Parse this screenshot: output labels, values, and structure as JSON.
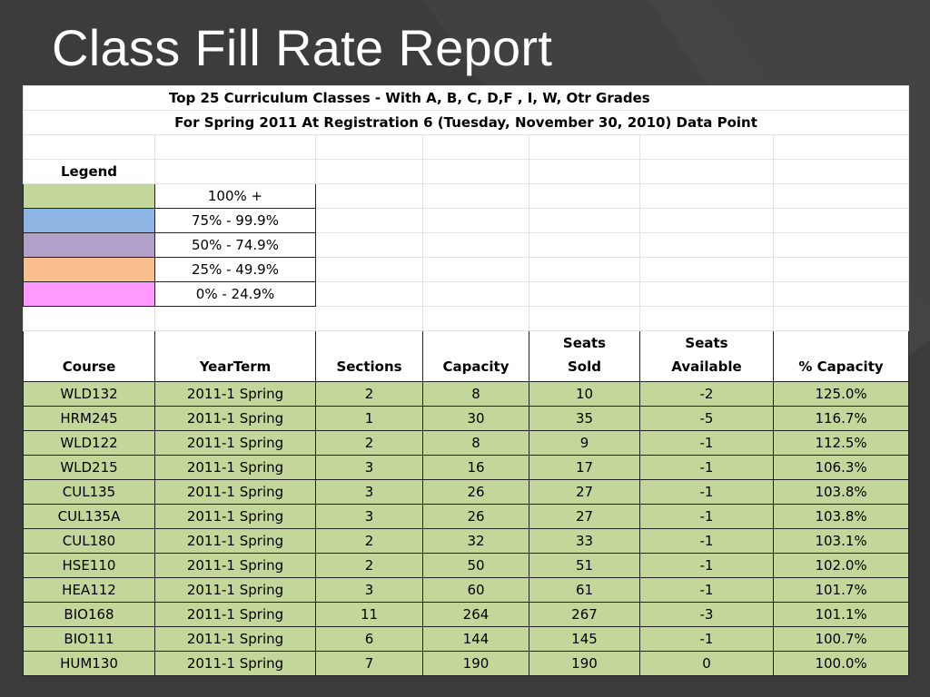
{
  "slide": {
    "title": "Class Fill Rate Report"
  },
  "report": {
    "heading1": "Top 25 Curriculum Classes - With A, B, C, D,F , I, W, Otr Grades",
    "heading2": "For Spring 2011 At Registration 6 (Tuesday, November 30, 2010) Data Point",
    "legend_title": "Legend",
    "legend": [
      {
        "color": "#c4d79b",
        "label": "100% +"
      },
      {
        "color": "#8db4e2",
        "label": "75% - 99.9%"
      },
      {
        "color": "#b1a0c7",
        "label": "50% - 74.9%"
      },
      {
        "color": "#fabf8f",
        "label": "25% - 49.9%"
      },
      {
        "color": "#ff99ff",
        "label": "0% - 24.9%"
      }
    ],
    "columns": {
      "course": "Course",
      "yearterm": "YearTerm",
      "sections": "Sections",
      "capacity": "Capacity",
      "seats_sold_1": "Seats",
      "seats_sold_2": "Sold",
      "seats_avail_1": "Seats",
      "seats_avail_2": "Available",
      "pct_capacity": "% Capacity"
    },
    "rows": [
      [
        "WLD132",
        "2011-1 Spring",
        "2",
        "8",
        "10",
        "-2",
        "125.0%"
      ],
      [
        "HRM245",
        "2011-1 Spring",
        "1",
        "30",
        "35",
        "-5",
        "116.7%"
      ],
      [
        "WLD122",
        "2011-1 Spring",
        "2",
        "8",
        "9",
        "-1",
        "112.5%"
      ],
      [
        "WLD215",
        "2011-1 Spring",
        "3",
        "16",
        "17",
        "-1",
        "106.3%"
      ],
      [
        "CUL135",
        "2011-1 Spring",
        "3",
        "26",
        "27",
        "-1",
        "103.8%"
      ],
      [
        "CUL135A",
        "2011-1 Spring",
        "3",
        "26",
        "27",
        "-1",
        "103.8%"
      ],
      [
        "CUL180",
        "2011-1 Spring",
        "2",
        "32",
        "33",
        "-1",
        "103.1%"
      ],
      [
        "HSE110",
        "2011-1 Spring",
        "2",
        "50",
        "51",
        "-1",
        "102.0%"
      ],
      [
        "HEA112",
        "2011-1 Spring",
        "3",
        "60",
        "61",
        "-1",
        "101.7%"
      ],
      [
        "BIO168",
        "2011-1 Spring",
        "11",
        "264",
        "267",
        "-3",
        "101.1%"
      ],
      [
        "BIO111",
        "2011-1 Spring",
        "6",
        "144",
        "145",
        "-1",
        "100.7%"
      ],
      [
        "HUM130",
        "2011-1 Spring",
        "7",
        "190",
        "190",
        "0",
        "100.0%"
      ]
    ]
  }
}
